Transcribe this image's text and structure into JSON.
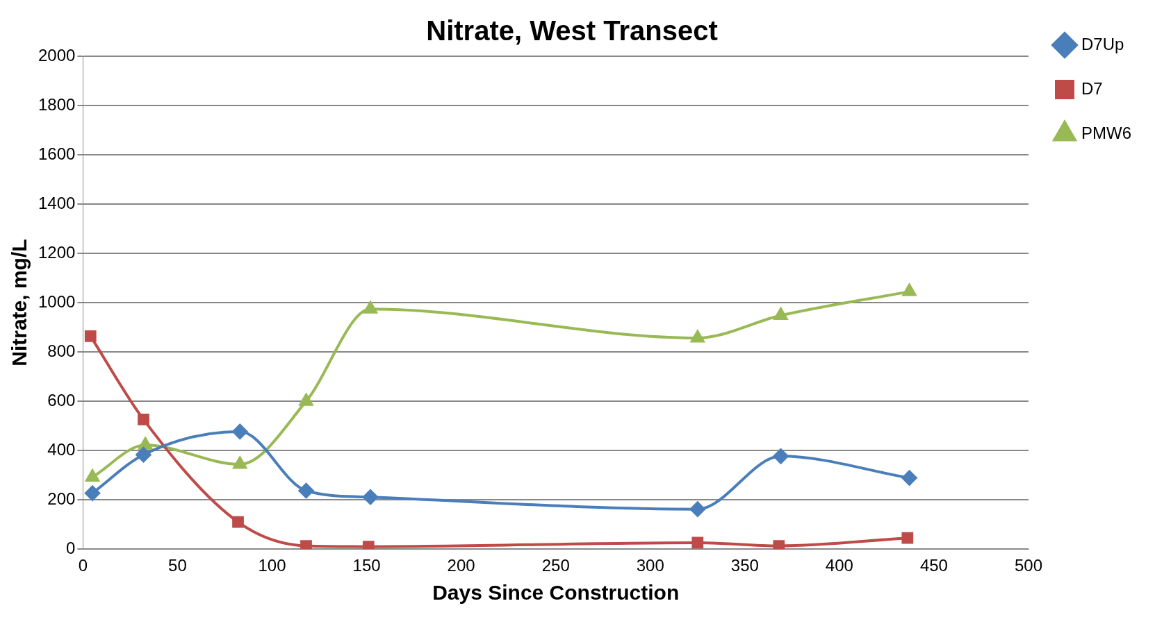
{
  "chart_data": {
    "type": "line",
    "title": "Nitrate, West Transect",
    "xlabel": "Days Since Construction",
    "ylabel": "Nitrate, mg/L",
    "xlim": [
      0,
      500
    ],
    "xticks": [
      0,
      50,
      100,
      150,
      200,
      250,
      300,
      350,
      400,
      450,
      500
    ],
    "ylim": [
      0,
      2000
    ],
    "yticks": [
      0,
      200,
      400,
      600,
      800,
      1000,
      1200,
      1400,
      1600,
      1800,
      2000
    ],
    "grid": "y",
    "legend": "top right",
    "series": [
      {
        "name": "D7Up",
        "color": "#4a7ebb",
        "marker": "diamond",
        "x": [
          5,
          32,
          83,
          118,
          152,
          325,
          369,
          437
        ],
        "values": [
          227,
          383,
          477,
          237,
          211,
          162,
          377,
          289
        ]
      },
      {
        "name": "D7",
        "color": "#be4b48",
        "marker": "square",
        "x": [
          4,
          32,
          82,
          118,
          151,
          325,
          368,
          436
        ],
        "values": [
          864,
          526,
          110,
          13,
          10,
          26,
          13,
          45
        ]
      },
      {
        "name": "PMW6",
        "color": "#98b954",
        "marker": "triangle",
        "x": [
          5,
          33,
          83,
          118,
          152,
          325,
          369,
          437
        ],
        "values": [
          292,
          422,
          344,
          600,
          974,
          857,
          948,
          1045
        ]
      }
    ]
  }
}
